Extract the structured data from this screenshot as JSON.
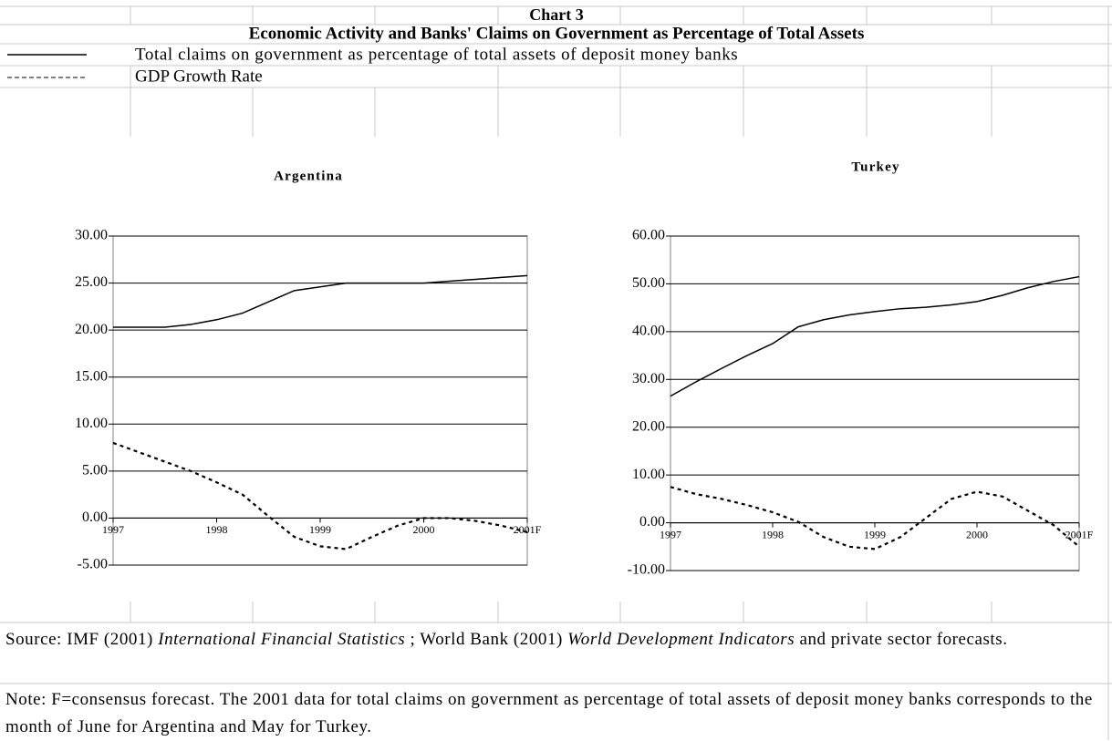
{
  "header": {
    "chart_label": "Chart 3",
    "title": "Economic Activity and Banks' Claims on Government as Percentage of Total Assets"
  },
  "chart_data": [
    {
      "type": "line",
      "title": "Argentina",
      "x": [
        1997,
        1997.25,
        1997.5,
        1997.75,
        1998,
        1998.25,
        1998.5,
        1998.75,
        1999,
        1999.25,
        1999.5,
        1999.75,
        2000,
        2000.25,
        2000.5,
        2000.75,
        2001
      ],
      "series": [
        {
          "name": "Total claims on government as percentage of total assets of deposit money banks",
          "color": "#000000",
          "dashed": false,
          "values": [
            20.3,
            20.3,
            20.3,
            20.6,
            21.1,
            21.8,
            23.0,
            24.2,
            24.6,
            25.0,
            25.0,
            25.0,
            25.0,
            25.2,
            25.4,
            25.6,
            25.8
          ]
        },
        {
          "name": "GDP Growth Rate",
          "color": "#000000",
          "dashed": true,
          "values": [
            8.0,
            7.0,
            6.0,
            5.0,
            3.8,
            2.5,
            0.2,
            -2.0,
            -3.0,
            -3.3,
            -2.0,
            -0.8,
            0.0,
            0.0,
            -0.3,
            -0.8,
            -1.5
          ]
        }
      ],
      "xlim": [
        1997,
        2001
      ],
      "xticks": [
        1997,
        1998,
        1999,
        2000,
        {
          "value": 2001,
          "label": "2001F"
        }
      ],
      "ylim": [
        -5,
        30
      ],
      "yticks": [
        {
          "value": -5,
          "label": "-5.00"
        },
        {
          "value": 0,
          "label": "0.00"
        },
        {
          "value": 5,
          "label": "5.00"
        },
        {
          "value": 10,
          "label": "10.00"
        },
        {
          "value": 15,
          "label": "15.00"
        },
        {
          "value": 20,
          "label": "20.00"
        },
        {
          "value": 25,
          "label": "25.00"
        },
        {
          "value": 30,
          "label": "30.00"
        }
      ],
      "grid": true
    },
    {
      "type": "line",
      "title": "Turkey",
      "x": [
        1997,
        1997.25,
        1997.5,
        1997.75,
        1998,
        1998.25,
        1998.5,
        1998.75,
        1999,
        1999.25,
        1999.5,
        1999.75,
        2000,
        2000.25,
        2000.5,
        2000.75,
        2001
      ],
      "series": [
        {
          "color": "#000000",
          "dashed": false,
          "values": [
            26.5,
            29.5,
            32.3,
            35.0,
            37.5,
            41.0,
            42.5,
            43.5,
            44.2,
            44.8,
            45.1,
            45.6,
            46.3,
            47.6,
            49.2,
            50.5,
            51.5
          ]
        },
        {
          "color": "#000000",
          "dashed": true,
          "values": [
            7.5,
            6.0,
            5.0,
            3.7,
            2.2,
            0.2,
            -3.0,
            -5.0,
            -5.5,
            -3.0,
            1.0,
            5.0,
            6.5,
            5.5,
            2.5,
            -0.5,
            -5.0
          ]
        }
      ],
      "xlim": [
        1997,
        2001
      ],
      "xticks": [
        1997,
        1998,
        1999,
        2000,
        {
          "value": 2001,
          "label": "2001F"
        }
      ],
      "ylim": [
        -10,
        60
      ],
      "yticks": [
        {
          "value": -10,
          "label": "-10.00"
        },
        {
          "value": 0,
          "label": "0.00"
        },
        {
          "value": 10,
          "label": "10.00"
        },
        {
          "value": 20,
          "label": "20.00"
        },
        {
          "value": 30,
          "label": "30.00"
        },
        {
          "value": 40,
          "label": "40.00"
        },
        {
          "value": 50,
          "label": "50.00"
        },
        {
          "value": 60,
          "label": "60.00"
        }
      ],
      "grid": true
    }
  ],
  "source": [
    "Source: IMF (2001) ",
    "International Financial Statistics",
    " ; World Bank (2001) ",
    "World Development Indicators",
    " and private sector forecasts."
  ],
  "note": "Note: F=consensus forecast. The 2001 data for total claims on government as percentage of total assets of deposit money banks corresponds to the month of June for Argentina and May for Turkey."
}
